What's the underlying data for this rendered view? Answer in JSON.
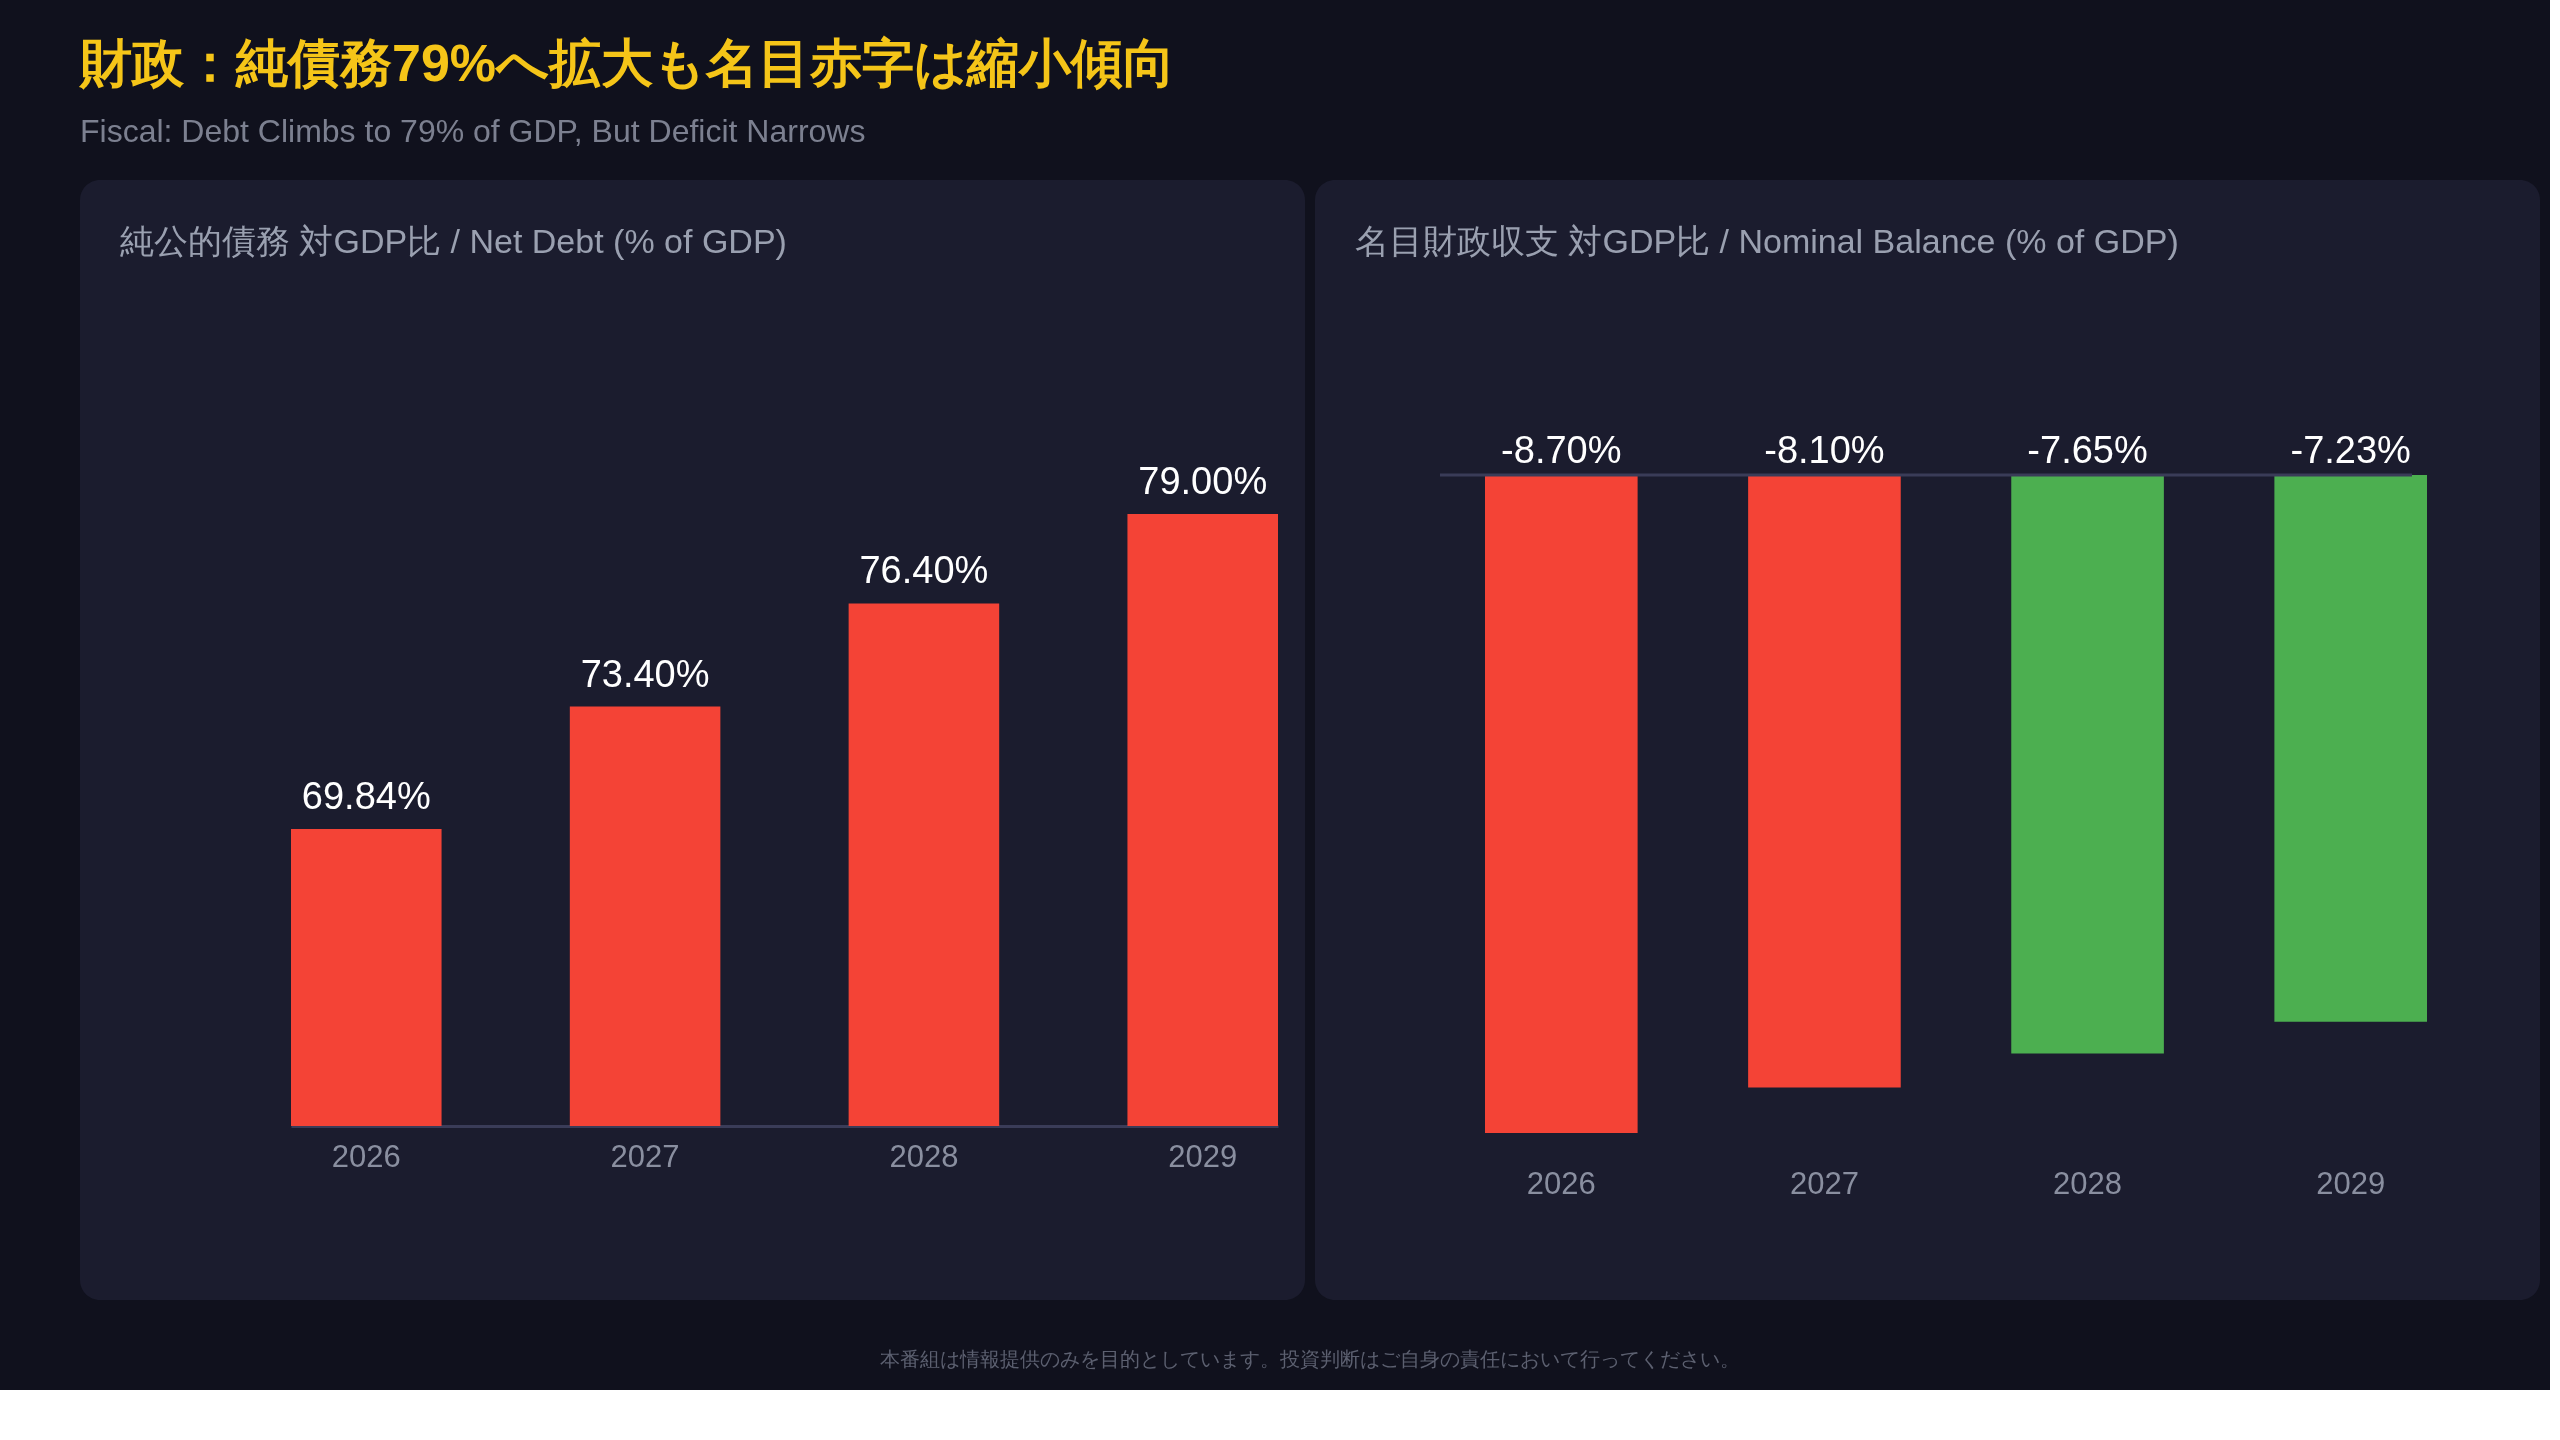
{
  "chart_data": [
    {
      "type": "other",
      "title": "財政：純債務79%へ拡大も名目赤字は縮小傾向",
      "subtitle": "Fiscal: Debt Climbs to 79% of GDP, But Deficit Narrows",
      "annotations": [
        "本番組は情報提供のみを目的としています。投資判断はご自身の責任において行ってください。"
      ]
    },
    {
      "type": "bar",
      "title": "純公的債務 対GDP比 / Net Debt (% of GDP)",
      "categories": [
        "2026",
        "2027",
        "2028",
        "2029"
      ],
      "values": [
        69.84,
        73.4,
        76.4,
        79.0
      ],
      "colors": [
        "#f44336",
        "#f44336",
        "#f44336",
        "#f44336"
      ],
      "value_labels": [
        "69.84%",
        "73.40%",
        "76.40%",
        "79.00%"
      ],
      "ylim": [
        61.2,
        79.0
      ]
    },
    {
      "type": "bar",
      "title": "名目財政収支 対GDP比 / Nominal Balance (% of GDP)",
      "categories": [
        "2026",
        "2027",
        "2028",
        "2029"
      ],
      "values": [
        -8.7,
        -8.1,
        -7.65,
        -7.23
      ],
      "colors": [
        "#f44336",
        "#f44336",
        "#4caf50",
        "#4caf50"
      ],
      "value_labels": [
        "-8.70%",
        "-8.10%",
        "-7.65%",
        "-7.23%"
      ],
      "ylim": [
        -8.7,
        0
      ],
      "ref_lines": [
        {
          "axis": "y",
          "value": 0,
          "color": "#3a3c58"
        }
      ]
    }
  ]
}
